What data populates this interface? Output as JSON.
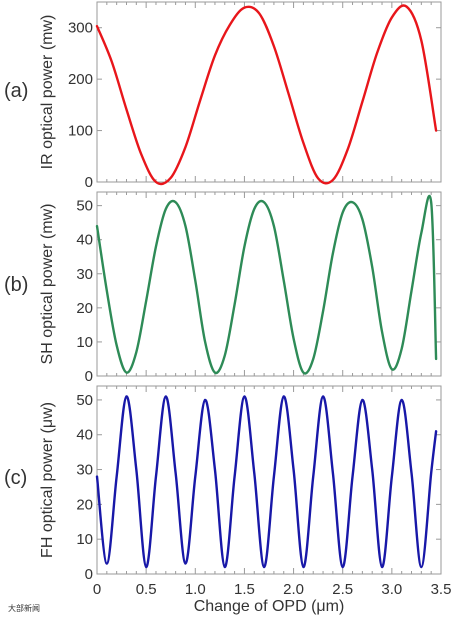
{
  "chart_data": [
    {
      "type": "line",
      "panel_label": "(a)",
      "ylabel": "IR optical power (mw)",
      "xlim": [
        0,
        3.5
      ],
      "ylim": [
        0,
        350
      ],
      "yticks": [
        0,
        100,
        200,
        300
      ],
      "grid": false,
      "series": [
        {
          "color": "#e8161b",
          "x": [
            0.0,
            0.15,
            0.3,
            0.45,
            0.6,
            0.75,
            0.9,
            1.05,
            1.2,
            1.35,
            1.5,
            1.65,
            1.8,
            1.95,
            2.1,
            2.25,
            2.4,
            2.55,
            2.7,
            2.85,
            3.0,
            3.15,
            3.3,
            3.45
          ],
          "y": [
            303,
            234,
            141,
            54,
            0,
            8,
            68,
            159,
            246,
            305,
            339,
            328,
            264,
            171,
            76,
            7,
            4,
            63,
            156,
            251,
            320,
            341,
            275,
            100
          ]
        }
      ]
    },
    {
      "type": "line",
      "panel_label": "(b)",
      "ylabel": "SH optical power (mw)",
      "xlim": [
        0,
        3.5
      ],
      "ylim": [
        0,
        54
      ],
      "yticks": [
        0,
        10,
        20,
        30,
        40,
        50
      ],
      "grid": false,
      "series": [
        {
          "color": "#2e8b57",
          "x": [
            0.0,
            0.1,
            0.2,
            0.3,
            0.4,
            0.5,
            0.6,
            0.7,
            0.8,
            0.9,
            1.0,
            1.1,
            1.2,
            1.3,
            1.4,
            1.5,
            1.6,
            1.7,
            1.8,
            1.9,
            2.0,
            2.1,
            2.2,
            2.3,
            2.4,
            2.5,
            2.6,
            2.7,
            2.8,
            2.9,
            3.0,
            3.1,
            3.2,
            3.3,
            3.4,
            3.45
          ],
          "y": [
            44,
            25,
            9,
            1,
            7,
            22,
            38,
            49,
            51,
            44,
            28,
            10,
            1,
            6,
            21,
            38,
            49,
            51,
            44,
            28,
            11,
            1,
            5,
            19,
            36,
            48,
            51,
            46,
            32,
            13,
            2,
            8,
            25,
            42,
            51,
            5
          ]
        }
      ]
    },
    {
      "type": "line",
      "panel_label": "(c)",
      "ylabel": "FH optical power (μw)",
      "xlabel": "Change of OPD (μm)",
      "xlim": [
        0,
        3.5
      ],
      "ylim": [
        0,
        54
      ],
      "xticks": [
        0,
        0.5,
        1.0,
        1.5,
        2.0,
        2.5,
        3.0,
        3.5
      ],
      "xticklabels": [
        "0",
        "0.5",
        "1.0",
        "1.5",
        "2.0",
        "2.5",
        "3.0",
        "3.5"
      ],
      "yticks": [
        0,
        10,
        20,
        30,
        40,
        50
      ],
      "grid": false,
      "series": [
        {
          "color": "#1818a8",
          "x": [
            0.0,
            0.1,
            0.2,
            0.3,
            0.4,
            0.5,
            0.6,
            0.7,
            0.8,
            0.9,
            1.0,
            1.1,
            1.2,
            1.3,
            1.4,
            1.5,
            1.6,
            1.7,
            1.8,
            1.9,
            2.0,
            2.1,
            2.2,
            2.3,
            2.4,
            2.5,
            2.6,
            2.7,
            2.8,
            2.9,
            3.0,
            3.1,
            3.2,
            3.3,
            3.4,
            3.45
          ],
          "y": [
            28,
            3,
            28,
            51,
            30,
            2,
            28,
            51,
            29,
            3,
            28,
            50,
            30,
            2,
            28,
            51,
            29,
            2,
            28,
            51,
            30,
            2,
            28,
            51,
            29,
            2,
            28,
            50,
            30,
            2,
            28,
            50,
            29,
            2,
            29,
            41
          ]
        }
      ]
    }
  ],
  "watermark": "大部新闻"
}
